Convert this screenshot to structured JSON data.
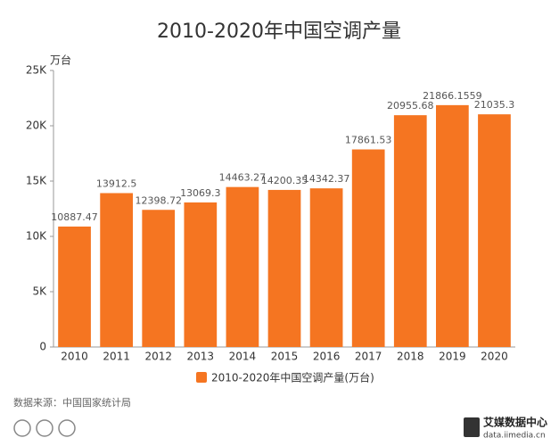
{
  "chart_data": {
    "type": "bar",
    "title": "2010-2020年中国空调产量",
    "y_unit": "万台",
    "categories": [
      "2010",
      "2011",
      "2012",
      "2013",
      "2014",
      "2015",
      "2016",
      "2017",
      "2018",
      "2019",
      "2020"
    ],
    "series": [
      {
        "name": "2010-2020年中国空调产量(万台)",
        "color": "#f57521",
        "values": [
          10887.47,
          13912.5,
          12398.72,
          13069.3,
          14463.27,
          14200.35,
          14342.37,
          17861.53,
          20955.68,
          21866.1559,
          21035.3
        ]
      }
    ],
    "ylim": [
      0,
      25000
    ],
    "yticks": [
      0,
      {
        "value": 5000,
        "label": "5K"
      },
      {
        "value": 10000,
        "label": "10K"
      },
      {
        "value": 15000,
        "label": "15K"
      },
      {
        "value": 20000,
        "label": "20K"
      },
      {
        "value": 25000,
        "label": "25K"
      }
    ],
    "grid": false
  },
  "footer": {
    "source": "数据来源：中国国家统计局",
    "brand": "艾媒数据中心",
    "site": "data.iimedia.cn"
  }
}
